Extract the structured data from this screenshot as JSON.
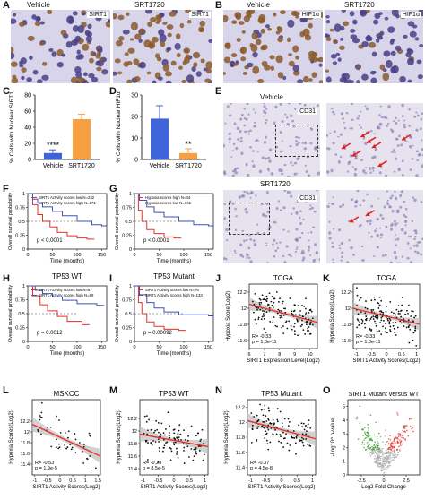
{
  "panels": {
    "A": {
      "letter": "A",
      "left_title": "Vehicle",
      "right_title": "SRT1720",
      "tag": "SIRT1"
    },
    "B": {
      "letter": "B",
      "left_title": "Vehicle",
      "right_title": "SRT1720",
      "tag": "HIF1α"
    },
    "E": {
      "letter": "E",
      "top_title": "Vehicle",
      "bottom_title": "SRT1720",
      "tag": "CD31"
    }
  },
  "letters": {
    "C": "C",
    "D": "D",
    "F": "F",
    "G": "G",
    "H": "H",
    "I": "I",
    "J": "J",
    "K": "K",
    "L": "L",
    "M": "M",
    "N": "N",
    "O": "O"
  },
  "colors": {
    "blue": "#3f63d8",
    "orange": "#f6a041",
    "red": "#e4322b",
    "km_blue": "#3f52b5",
    "ci_gray": "#bdbdbd",
    "scatter_dot": "#111111",
    "ihc_bg": "#d8d4ea",
    "ihc_nucleus": "#4a3f86",
    "ihc_brown": "#8a5a2b",
    "arrow": "#e02020"
  },
  "bars": [
    {
      "id": "C",
      "type": "bar",
      "ylabel": "% Cells with Nuclear SIRT1",
      "categories": [
        "Vehicle",
        "SRT1720"
      ],
      "values": [
        8,
        50
      ],
      "errors": [
        4,
        6
      ],
      "ylim": [
        0,
        80
      ],
      "ticks": [
        0,
        20,
        40,
        60,
        80
      ],
      "sig": "****"
    },
    {
      "id": "D",
      "type": "bar",
      "ylabel": "% Cells with Nuclear HIF1α",
      "categories": [
        "Vehicle",
        "SRT1720"
      ],
      "values": [
        19,
        3
      ],
      "errors": [
        6,
        2
      ],
      "ylim": [
        0,
        30
      ],
      "ticks": [
        0,
        10,
        20,
        30
      ],
      "sig": "**"
    }
  ],
  "km": [
    {
      "id": "F",
      "title": "",
      "legend": [
        "SIRT1 Activity scores low N=232",
        "SIRT1 Activity scores high N=171"
      ],
      "pvalue": "p < 0.0001",
      "xlabel": "Time (months)",
      "ylabel": "Overall survival probability",
      "xticks": [
        0,
        50,
        100,
        150
      ],
      "yticks": [
        0,
        0.25,
        0.5,
        0.75,
        1
      ],
      "series": [
        {
          "name": "SIRT1 Activity scores low N=232",
          "color": "#e4322b",
          "points": [
            [
              0,
              1
            ],
            [
              10,
              0.8
            ],
            [
              20,
              0.62
            ],
            [
              30,
              0.5
            ],
            [
              45,
              0.4
            ],
            [
              60,
              0.3
            ],
            [
              80,
              0.24
            ],
            [
              100,
              0.2
            ],
            [
              120,
              0.18
            ]
          ]
        },
        {
          "name": "SIRT1 Activity scores high N=171",
          "color": "#3f52b5",
          "points": [
            [
              0,
              1
            ],
            [
              10,
              0.9
            ],
            [
              20,
              0.83
            ],
            [
              30,
              0.76
            ],
            [
              50,
              0.68
            ],
            [
              70,
              0.6
            ],
            [
              100,
              0.5
            ],
            [
              130,
              0.44
            ],
            [
              150,
              0.42
            ]
          ]
        }
      ]
    },
    {
      "id": "G",
      "title": "",
      "legend": [
        "Hypoxia scores high N=44",
        "Hypoxia scores low N=361"
      ],
      "pvalue": "p < 0.0001",
      "xlabel": "Time (months)",
      "ylabel": "Overall survival probability",
      "xticks": [
        0,
        50,
        100,
        150
      ],
      "yticks": [
        0,
        0.25,
        0.5,
        0.75,
        1
      ],
      "series": [
        {
          "name": "Hypoxia scores high N=44",
          "color": "#e4322b",
          "points": [
            [
              0,
              1
            ],
            [
              8,
              0.7
            ],
            [
              15,
              0.5
            ],
            [
              25,
              0.35
            ],
            [
              40,
              0.28
            ],
            [
              60,
              0.22
            ],
            [
              80,
              0.2
            ]
          ]
        },
        {
          "name": "Hypoxia scores low N=361",
          "color": "#3f52b5",
          "points": [
            [
              0,
              1
            ],
            [
              10,
              0.88
            ],
            [
              25,
              0.76
            ],
            [
              40,
              0.66
            ],
            [
              60,
              0.58
            ],
            [
              90,
              0.5
            ],
            [
              120,
              0.44
            ],
            [
              150,
              0.42
            ]
          ]
        }
      ]
    },
    {
      "id": "H",
      "title": "TP53 WT",
      "legend": [
        "SIRT1 Activity scores low N=87",
        "SIRT1 Activity scores high N=89"
      ],
      "pvalue": "p = 0.0012",
      "xlabel": "Time (months)",
      "ylabel": "Overall survival probability",
      "xticks": [
        0,
        50,
        100,
        150
      ],
      "yticks": [
        0,
        0.25,
        0.5,
        0.75,
        1
      ],
      "series": [
        {
          "name": "SIRT1 Activity scores low N=87",
          "color": "#e4322b",
          "points": [
            [
              0,
              1
            ],
            [
              10,
              0.82
            ],
            [
              25,
              0.66
            ],
            [
              40,
              0.55
            ],
            [
              60,
              0.45
            ],
            [
              80,
              0.36
            ],
            [
              110,
              0.3
            ]
          ]
        },
        {
          "name": "SIRT1 Activity scores high N=89",
          "color": "#3f52b5",
          "points": [
            [
              0,
              1
            ],
            [
              15,
              0.92
            ],
            [
              30,
              0.86
            ],
            [
              50,
              0.8
            ],
            [
              70,
              0.74
            ],
            [
              100,
              0.68
            ],
            [
              140,
              0.65
            ]
          ]
        }
      ]
    },
    {
      "id": "I",
      "title": "TP53 Mutant",
      "legend": [
        "SIRT1 Activity scores low N=76",
        "SIRT1 Activity scores high N=133"
      ],
      "pvalue": "p = 0.00092",
      "xlabel": "Time (months)",
      "ylabel": "Overall survival probability",
      "xticks": [
        0,
        50,
        100,
        150
      ],
      "yticks": [
        0,
        0.25,
        0.5,
        0.75,
        1
      ],
      "series": [
        {
          "name": "SIRT1 Activity scores low N=76",
          "color": "#e4322b",
          "points": [
            [
              0,
              1
            ],
            [
              8,
              0.7
            ],
            [
              15,
              0.5
            ],
            [
              25,
              0.35
            ],
            [
              40,
              0.27
            ],
            [
              60,
              0.22
            ],
            [
              90,
              0.2
            ]
          ]
        },
        {
          "name": "SIRT1 Activity scores high N=133",
          "color": "#3f52b5",
          "points": [
            [
              0,
              1
            ],
            [
              10,
              0.84
            ],
            [
              25,
              0.7
            ],
            [
              40,
              0.6
            ],
            [
              60,
              0.53
            ],
            [
              90,
              0.48
            ],
            [
              150,
              0.46
            ]
          ]
        }
      ]
    }
  ],
  "scatter": [
    {
      "id": "J",
      "title": "TCGA",
      "xlabel": "SIRT1 Expression Level(Log2)",
      "ylabel": "Hypoxia Score(Log2)",
      "stats": [
        "R= -0.33",
        "p = 1.8e-11"
      ],
      "xlim": [
        6,
        10.5
      ],
      "ylim": [
        11.5,
        12.3
      ],
      "xticks": [
        6,
        7,
        8,
        9,
        10
      ],
      "yticks": [
        11.6,
        11.8,
        12.0,
        12.2
      ],
      "slope": -0.05,
      "intercept": 12.35,
      "n": 150,
      "seed": 3
    },
    {
      "id": "K",
      "title": "TCGA",
      "xlabel": "SIRT1 Activity Scores(Log2)",
      "ylabel": "Hypoxia Scores(Log2)",
      "stats": [
        "R= -0.33",
        "p = 1.8e-11"
      ],
      "xlim": [
        -1.1,
        1.1
      ],
      "ylim": [
        11.5,
        12.3
      ],
      "xticks": [
        -1.0,
        -0.5,
        0.0,
        0.5,
        1.0
      ],
      "yticks": [
        11.6,
        11.8,
        12.0,
        12.2
      ],
      "slope": -0.09,
      "intercept": 11.9,
      "n": 150,
      "seed": 7
    },
    {
      "id": "L",
      "title": "MSKCC",
      "xlabel": "SIRT1 Activity Scores(Log2)",
      "ylabel": "Hypoxia Scores(Log2)",
      "stats": [
        "R= -0.53",
        "p = 1.9e-5"
      ],
      "xlim": [
        -1.1,
        1.6
      ],
      "ylim": [
        11.2,
        12.6
      ],
      "xticks": [
        -1.0,
        -0.5,
        0.0,
        0.5,
        1.0,
        1.5
      ],
      "yticks": [
        11.4,
        11.6,
        11.8,
        12.0,
        12.2
      ],
      "slope": -0.22,
      "intercept": 11.9,
      "n": 45,
      "seed": 11
    },
    {
      "id": "M",
      "title": "TP53 WT",
      "xlabel": "SIRT1 Activity Scores(Log2)",
      "ylabel": "Hypoxia Scores(Log2)",
      "stats": [
        "R= -0.28",
        "p = 8.5e-5"
      ],
      "xlim": [
        -1.1,
        1.1
      ],
      "ylim": [
        11.3,
        12.5
      ],
      "xticks": [
        -1.0,
        -0.5,
        0.0,
        0.5,
        1.0
      ],
      "yticks": [
        11.4,
        11.6,
        11.8,
        12.0,
        12.2
      ],
      "slope": -0.09,
      "intercept": 11.85,
      "n": 110,
      "seed": 19
    },
    {
      "id": "N",
      "title": "TP53 Mutant",
      "xlabel": "SIRT1 Activity Scores(Log2)",
      "ylabel": "Hypoxia Scores(Log2)",
      "stats": [
        "R= -0.37",
        "p = 4.5e-8"
      ],
      "xlim": [
        -1.1,
        1.1
      ],
      "ylim": [
        11.3,
        12.3
      ],
      "xticks": [
        -1.0,
        -0.5,
        0.0,
        0.5,
        1.0
      ],
      "yticks": [
        11.4,
        11.6,
        11.8,
        12.0,
        12.2
      ],
      "slope": -0.11,
      "intercept": 11.9,
      "n": 120,
      "seed": 23
    }
  ],
  "volcano": {
    "id": "O",
    "title": "SIRT1 Mutant versus WT",
    "xlabel": "Log2 Fold-Change",
    "ylabel": "-Log10^ p-value",
    "xticks": [
      -2.5,
      0,
      2.5
    ],
    "yticks": [
      0,
      1,
      2,
      3,
      4,
      5
    ],
    "xlim": [
      -4,
      4
    ],
    "ylim": [
      0,
      5.5
    ]
  }
}
